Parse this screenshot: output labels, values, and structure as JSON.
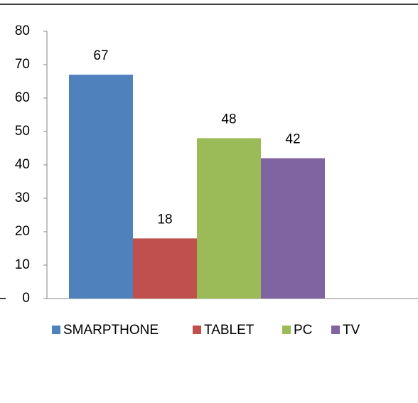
{
  "chart_data": {
    "type": "bar",
    "categories": [
      null
    ],
    "series": [
      {
        "name": "SMARPTHONE",
        "color": "#4f81bd",
        "values": [
          67
        ]
      },
      {
        "name": "TABLET",
        "color": "#c0504d",
        "values": [
          18
        ]
      },
      {
        "name": "PC",
        "color": "#9bbb59",
        "values": [
          48
        ]
      },
      {
        "name": "TV",
        "color": "#8064a2",
        "values": [
          42
        ]
      }
    ],
    "ylim": [
      0,
      80
    ],
    "yticks": [
      0,
      10,
      20,
      30,
      40,
      50,
      60,
      70,
      80
    ],
    "legend": "bottom",
    "grid": false
  }
}
